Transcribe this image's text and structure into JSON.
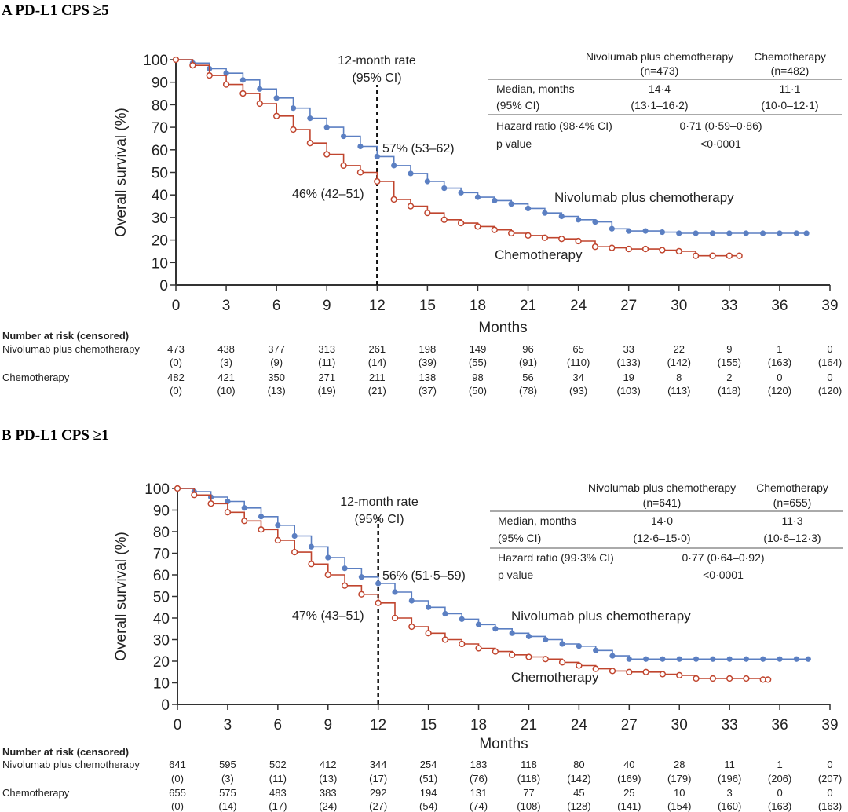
{
  "panels": [
    {
      "title": "A PD-L1 CPS ≥5",
      "ylabel": "Overall survival (%)",
      "xlabel": "Months",
      "annotation_rate": [
        "12-month rate",
        "(95% CI)"
      ],
      "nivo_rate_label": "57% (53–62)",
      "chemo_rate_label": "46% (42–51)",
      "table": {
        "col1": [
          "Nivolumab plus chemotherapy",
          "(n=473)"
        ],
        "col2": [
          "Chemotherapy",
          "(n=482)"
        ],
        "median_label": "Median, months",
        "ci_label": "(95% CI)",
        "median_nivo": "14·4",
        "median_chemo": "11·1",
        "ci_nivo": "(13·1–16·2)",
        "ci_chemo": "(10·0–12·1)",
        "hr_label": "Hazard ratio (98·4% CI)",
        "hr_value": "0·71 (0·59–0·86)",
        "p_label": "p value",
        "p_value": "<0·0001"
      },
      "risk": {
        "header": "Number at risk (censored)",
        "nivo_label": "Nivolumab plus chemotherapy",
        "nivo_n": [
          "473",
          "438",
          "377",
          "313",
          "261",
          "198",
          "149",
          "96",
          "65",
          "33",
          "22",
          "9",
          "1",
          "0"
        ],
        "nivo_c": [
          "(0)",
          "(3)",
          "(9)",
          "(11)",
          "(14)",
          "(39)",
          "(55)",
          "(91)",
          "(110)",
          "(133)",
          "(142)",
          "(155)",
          "(163)",
          "(164)"
        ],
        "chemo_label": "Chemotherapy",
        "chemo_n": [
          "482",
          "421",
          "350",
          "271",
          "211",
          "138",
          "98",
          "56",
          "34",
          "19",
          "8",
          "2",
          "0",
          "0"
        ],
        "chemo_c": [
          "(0)",
          "(10)",
          "(13)",
          "(19)",
          "(21)",
          "(37)",
          "(50)",
          "(78)",
          "(93)",
          "(103)",
          "(113)",
          "(118)",
          "(120)",
          "(120)"
        ]
      }
    },
    {
      "title": "B PD-L1 CPS ≥1",
      "ylabel": "Overall survival (%)",
      "xlabel": "Months",
      "annotation_rate": [
        "12-month rate",
        "(95% CI)"
      ],
      "nivo_rate_label": "56% (51·5–59)",
      "chemo_rate_label": "47% (43–51)",
      "table": {
        "col1": [
          "Nivolumab plus chemotherapy",
          "(n=641)"
        ],
        "col2": [
          "Chemotherapy",
          "(n=655)"
        ],
        "median_label": "Median, months",
        "ci_label": "(95% CI)",
        "median_nivo": "14·0",
        "median_chemo": "11·3",
        "ci_nivo": "(12·6–15·0)",
        "ci_chemo": "(10·6–12·3)",
        "hr_label": "Hazard ratio (99·3% CI)",
        "hr_value": "0·77 (0·64–0·92)",
        "p_label": "p value",
        "p_value": "<0·0001"
      },
      "risk": {
        "header": "Number at risk (censored)",
        "nivo_label": "Nivolumab plus chemotherapy",
        "nivo_n": [
          "641",
          "595",
          "502",
          "412",
          "344",
          "254",
          "183",
          "118",
          "80",
          "40",
          "28",
          "11",
          "1",
          "0"
        ],
        "nivo_c": [
          "(0)",
          "(3)",
          "(11)",
          "(13)",
          "(17)",
          "(51)",
          "(76)",
          "(118)",
          "(142)",
          "(169)",
          "(179)",
          "(196)",
          "(206)",
          "(207)"
        ],
        "chemo_label": "Chemotherapy",
        "chemo_n": [
          "655",
          "575",
          "483",
          "383",
          "292",
          "194",
          "131",
          "77",
          "45",
          "25",
          "10",
          "3",
          "0",
          "0"
        ],
        "chemo_c": [
          "(0)",
          "(14)",
          "(17)",
          "(24)",
          "(27)",
          "(54)",
          "(74)",
          "(108)",
          "(128)",
          "(141)",
          "(154)",
          "(160)",
          "(163)",
          "(163)"
        ]
      }
    }
  ],
  "chart_data": [
    {
      "type": "line",
      "title": "A PD-L1 CPS ≥5",
      "xlabel": "Months",
      "ylabel": "Overall survival (%)",
      "xlim": [
        0,
        39
      ],
      "ylim": [
        0,
        100
      ],
      "xticks": [
        0,
        3,
        6,
        9,
        12,
        15,
        18,
        21,
        24,
        27,
        30,
        33,
        36,
        39
      ],
      "yticks": [
        0,
        10,
        20,
        30,
        40,
        50,
        60,
        70,
        80,
        90,
        100
      ],
      "grid": false,
      "colors": {
        "nivo": "#5b7fc2",
        "chemo": "#c0452e"
      },
      "series": [
        {
          "name": "Nivolumab plus chemotherapy",
          "x": [
            0,
            1,
            2,
            3,
            4,
            5,
            6,
            7,
            8,
            9,
            10,
            11,
            12,
            13,
            14,
            15,
            16,
            17,
            18,
            19,
            20,
            21,
            22,
            23,
            24,
            25,
            26,
            27,
            28,
            29,
            30,
            31,
            32,
            33,
            34,
            35,
            36,
            37,
            37.6
          ],
          "y": [
            100,
            98.5,
            96,
            94,
            91,
            87,
            83,
            78.5,
            74,
            70,
            66,
            61.5,
            57,
            53,
            49.5,
            46,
            43,
            41,
            39,
            37.5,
            36,
            34,
            32,
            30.5,
            29,
            28,
            25,
            24,
            24,
            23.5,
            23,
            23,
            23,
            23,
            23,
            23,
            23,
            23,
            23
          ]
        },
        {
          "name": "Chemotherapy",
          "x": [
            0,
            1,
            2,
            3,
            4,
            5,
            6,
            7,
            8,
            9,
            10,
            11,
            12,
            13,
            14,
            15,
            16,
            17,
            18,
            19,
            20,
            21,
            22,
            23,
            24,
            25,
            26,
            27,
            28,
            29,
            30,
            31,
            32,
            33,
            33.6
          ],
          "y": [
            100,
            97.5,
            93,
            89,
            85,
            80.5,
            75,
            69,
            63,
            58,
            53,
            50,
            46,
            38,
            35,
            32,
            29,
            27.5,
            26,
            24.5,
            23,
            22,
            21,
            20.5,
            19.5,
            17,
            16.5,
            16,
            16,
            15.5,
            15,
            13,
            13,
            13,
            13
          ]
        }
      ]
    },
    {
      "type": "line",
      "title": "B PD-L1 CPS ≥1",
      "xlabel": "Months",
      "ylabel": "Overall survival (%)",
      "xlim": [
        0,
        39
      ],
      "ylim": [
        0,
        100
      ],
      "xticks": [
        0,
        3,
        6,
        9,
        12,
        15,
        18,
        21,
        24,
        27,
        30,
        33,
        36,
        39
      ],
      "yticks": [
        0,
        10,
        20,
        30,
        40,
        50,
        60,
        70,
        80,
        90,
        100
      ],
      "grid": false,
      "colors": {
        "nivo": "#5b7fc2",
        "chemo": "#c0452e"
      },
      "series": [
        {
          "name": "Nivolumab plus chemotherapy",
          "x": [
            0,
            1,
            2,
            3,
            4,
            5,
            6,
            7,
            8,
            9,
            10,
            11,
            12,
            13,
            14,
            15,
            16,
            17,
            18,
            19,
            20,
            21,
            22,
            23,
            24,
            25,
            26,
            27,
            28,
            29,
            30,
            31,
            32,
            33,
            34,
            35,
            36,
            37,
            37.7
          ],
          "y": [
            100,
            98.5,
            96,
            94,
            91,
            87,
            83,
            78,
            73,
            68,
            63,
            59,
            56,
            52,
            48,
            45,
            42,
            39.5,
            37,
            35,
            33,
            31.5,
            30,
            28,
            27,
            25,
            22.5,
            21,
            21,
            21,
            21,
            21,
            21,
            21,
            21,
            21,
            21,
            21,
            21
          ]
        },
        {
          "name": "Chemotherapy",
          "x": [
            0,
            1,
            2,
            3,
            4,
            5,
            6,
            7,
            8,
            9,
            10,
            11,
            12,
            13,
            14,
            15,
            16,
            17,
            18,
            19,
            20,
            21,
            22,
            23,
            24,
            25,
            26,
            27,
            28,
            29,
            30,
            31,
            32,
            33,
            34,
            35,
            35.3
          ],
          "y": [
            100,
            97,
            93,
            89,
            85,
            81,
            76,
            70.5,
            65,
            60,
            55,
            51,
            47,
            40,
            36,
            33,
            30,
            28,
            26,
            24.5,
            23,
            22,
            21,
            19.5,
            18,
            16.5,
            15.5,
            15,
            15,
            14,
            13.5,
            12,
            12,
            12,
            12,
            11.5,
            11.5
          ]
        }
      ]
    }
  ]
}
